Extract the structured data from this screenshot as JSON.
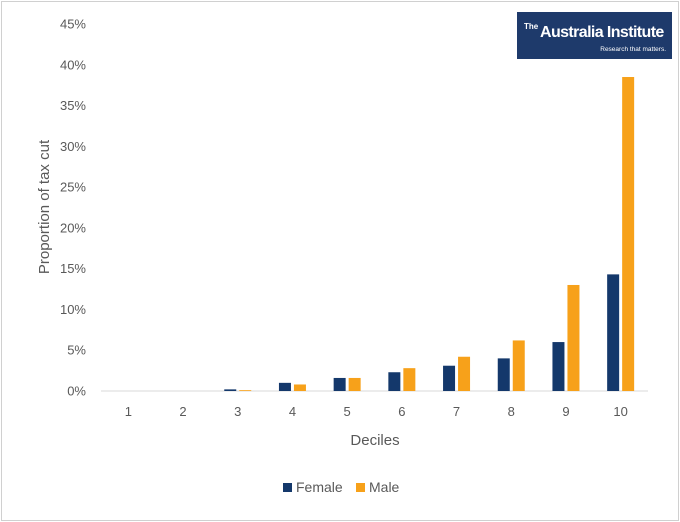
{
  "logo": {
    "the": "The",
    "name": "Australia Institute",
    "tagline": "Research that matters."
  },
  "colors": {
    "female": "#14386b",
    "male": "#f7a11a",
    "logo_bg": "#1e3a6b",
    "axis": "#d9d9d9"
  },
  "chart_data": {
    "type": "bar",
    "xlabel": "Deciles",
    "ylabel": "Proportion of tax cut",
    "categories": [
      "1",
      "2",
      "3",
      "4",
      "5",
      "6",
      "7",
      "8",
      "9",
      "10"
    ],
    "ylim": [
      0,
      45
    ],
    "yticks": [
      0,
      5,
      10,
      15,
      20,
      25,
      30,
      35,
      40,
      45
    ],
    "ytick_labels": [
      "0%",
      "5%",
      "10%",
      "15%",
      "20%",
      "25%",
      "30%",
      "35%",
      "40%",
      "45%"
    ],
    "grid": false,
    "legend_position": "bottom",
    "series": [
      {
        "name": "Female",
        "values": [
          0,
          0,
          0.2,
          1.0,
          1.6,
          2.3,
          3.1,
          4.0,
          6.0,
          14.3
        ]
      },
      {
        "name": "Male",
        "values": [
          0,
          0,
          0.1,
          0.8,
          1.6,
          2.8,
          4.2,
          6.2,
          13.0,
          38.5
        ]
      }
    ]
  }
}
